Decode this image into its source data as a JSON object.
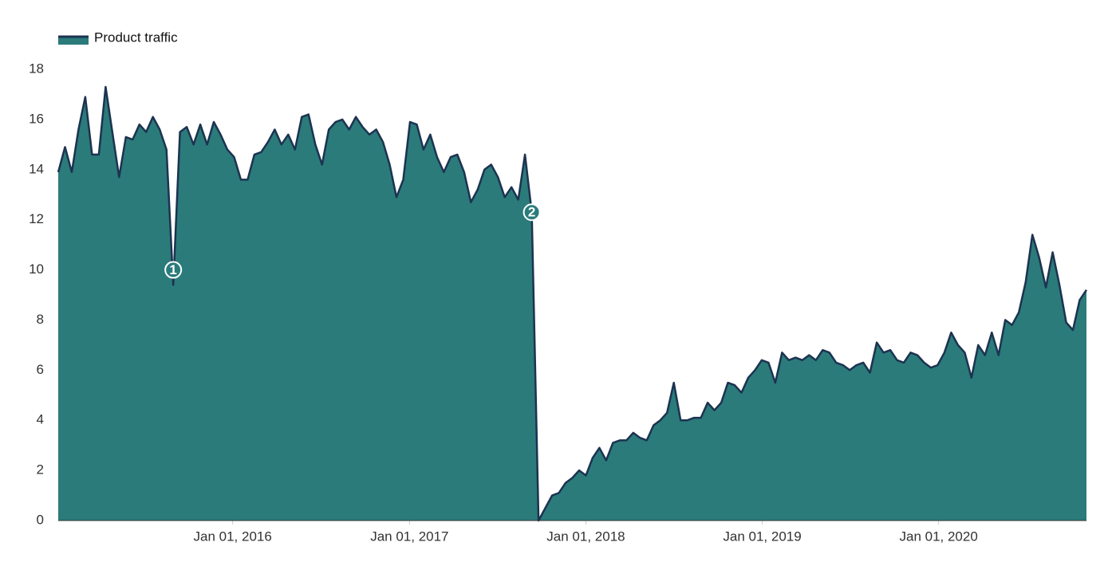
{
  "chart_data": {
    "type": "area",
    "legend": "top-left",
    "grid": false,
    "series": [
      {
        "name": "Product traffic",
        "color": "#2b7b7b",
        "line_color": "#1c3350",
        "values": [
          13.9,
          14.9,
          13.9,
          15.6,
          16.9,
          14.6,
          14.6,
          17.3,
          15.5,
          13.7,
          15.3,
          15.2,
          15.8,
          15.5,
          16.1,
          15.6,
          14.8,
          9.4,
          15.5,
          15.7,
          15.0,
          15.8,
          15.0,
          15.9,
          15.4,
          14.8,
          14.5,
          13.6,
          13.6,
          14.6,
          14.7,
          15.1,
          15.6,
          15.0,
          15.4,
          14.8,
          16.1,
          16.2,
          15.0,
          14.2,
          15.6,
          15.9,
          16.0,
          15.6,
          16.1,
          15.7,
          15.4,
          15.6,
          15.1,
          14.2,
          12.9,
          13.6,
          15.9,
          15.8,
          14.8,
          15.4,
          14.5,
          13.9,
          14.5,
          14.6,
          13.9,
          12.7,
          13.2,
          14.0,
          14.2,
          13.7,
          12.9,
          13.3,
          12.8,
          14.6,
          12.3,
          0.0,
          0.5,
          1.0,
          1.1,
          1.5,
          1.7,
          2.0,
          1.8,
          2.5,
          2.9,
          2.4,
          3.1,
          3.2,
          3.2,
          3.5,
          3.3,
          3.2,
          3.8,
          4.0,
          4.3,
          5.5,
          4.0,
          4.0,
          4.1,
          4.1,
          4.7,
          4.4,
          4.7,
          5.5,
          5.4,
          5.1,
          5.7,
          6.0,
          6.4,
          6.3,
          5.5,
          6.7,
          6.4,
          6.5,
          6.4,
          6.6,
          6.4,
          6.8,
          6.7,
          6.3,
          6.2,
          6.0,
          6.2,
          6.3,
          5.9,
          7.1,
          6.7,
          6.8,
          6.4,
          6.3,
          6.7,
          6.6,
          6.3,
          6.1,
          6.2,
          6.7,
          7.5,
          7.0,
          6.7,
          5.7,
          7.0,
          6.6,
          7.5,
          6.6,
          8.0,
          7.8,
          8.3,
          9.5,
          11.4,
          10.5,
          9.3,
          10.7,
          9.4,
          7.9,
          7.6,
          8.8,
          9.2
        ]
      }
    ],
    "x": [
      "2015-01-05",
      "2015-01-19",
      "2015-02-02",
      "2015-02-16",
      "2015-03-02",
      "2015-03-16",
      "2015-03-30",
      "2015-04-13",
      "2015-04-27",
      "2015-05-11",
      "2015-05-25",
      "2015-06-08",
      "2015-06-22",
      "2015-07-06",
      "2015-07-20",
      "2015-08-03",
      "2015-08-17",
      "2015-08-31",
      "2015-09-14",
      "2015-09-28",
      "2015-10-12",
      "2015-10-26",
      "2015-11-09",
      "2015-11-23",
      "2015-12-07",
      "2015-12-21",
      "2016-01-04",
      "2016-01-18",
      "2016-02-01",
      "2016-02-15",
      "2016-02-29",
      "2016-03-14",
      "2016-03-28",
      "2016-04-11",
      "2016-04-25",
      "2016-05-09",
      "2016-05-23",
      "2016-06-06",
      "2016-06-20",
      "2016-07-04",
      "2016-07-18",
      "2016-08-01",
      "2016-08-15",
      "2016-08-29",
      "2016-09-12",
      "2016-09-26",
      "2016-10-10",
      "2016-10-24",
      "2016-11-07",
      "2016-11-21",
      "2016-12-05",
      "2016-12-19",
      "2017-01-02",
      "2017-01-16",
      "2017-01-30",
      "2017-02-13",
      "2017-02-27",
      "2017-03-13",
      "2017-03-27",
      "2017-04-10",
      "2017-04-24",
      "2017-05-08",
      "2017-05-22",
      "2017-06-05",
      "2017-06-19",
      "2017-07-03",
      "2017-07-17",
      "2017-07-31",
      "2017-08-14",
      "2017-08-28",
      "2017-09-11",
      "2017-09-25",
      "2017-10-09",
      "2017-10-23",
      "2017-11-06",
      "2017-11-20",
      "2017-12-04",
      "2017-12-18",
      "2018-01-01",
      "2018-01-15",
      "2018-01-29",
      "2018-02-12",
      "2018-02-26",
      "2018-03-12",
      "2018-03-26",
      "2018-04-09",
      "2018-04-23",
      "2018-05-07",
      "2018-05-21",
      "2018-06-04",
      "2018-06-18",
      "2018-07-02",
      "2018-07-16",
      "2018-07-30",
      "2018-08-13",
      "2018-08-27",
      "2018-09-10",
      "2018-09-24",
      "2018-10-08",
      "2018-10-22",
      "2018-11-05",
      "2018-11-19",
      "2018-12-03",
      "2018-12-17",
      "2018-12-31",
      "2019-01-14",
      "2019-01-28",
      "2019-02-11",
      "2019-02-25",
      "2019-03-11",
      "2019-03-25",
      "2019-04-08",
      "2019-04-22",
      "2019-05-06",
      "2019-05-20",
      "2019-06-03",
      "2019-06-17",
      "2019-07-01",
      "2019-07-15",
      "2019-07-29",
      "2019-08-12",
      "2019-08-26",
      "2019-09-09",
      "2019-09-23",
      "2019-10-07",
      "2019-10-21",
      "2019-11-04",
      "2019-11-18",
      "2019-12-02",
      "2019-12-16",
      "2019-12-30",
      "2020-01-13",
      "2020-01-27",
      "2020-02-10",
      "2020-02-24",
      "2020-03-09",
      "2020-03-23",
      "2020-04-06",
      "2020-04-20",
      "2020-05-04",
      "2020-05-18",
      "2020-06-01",
      "2020-06-15",
      "2020-06-29",
      "2020-07-13",
      "2020-07-27",
      "2020-08-10",
      "2020-08-24",
      "2020-09-07",
      "2020-09-21",
      "2020-10-05",
      "2020-10-19",
      "2020-11-02"
    ],
    "xlim": [
      "2015-01-05",
      "2020-11-02"
    ],
    "xticks": [
      {
        "value": "2016-01-01",
        "label": "Jan 01, 2016"
      },
      {
        "value": "2017-01-01",
        "label": "Jan 01, 2017"
      },
      {
        "value": "2018-01-01",
        "label": "Jan 01, 2018"
      },
      {
        "value": "2019-01-01",
        "label": "Jan 01, 2019"
      },
      {
        "value": "2020-01-01",
        "label": "Jan 01, 2020"
      }
    ],
    "ylim": [
      0,
      18
    ],
    "yticks": [
      0,
      2,
      4,
      6,
      8,
      10,
      12,
      14,
      16,
      18
    ],
    "annotations": [
      {
        "x": "2015-08-31",
        "y": 10,
        "label": "1"
      },
      {
        "x": "2017-09-11",
        "y": 12.3,
        "label": "2"
      }
    ]
  }
}
